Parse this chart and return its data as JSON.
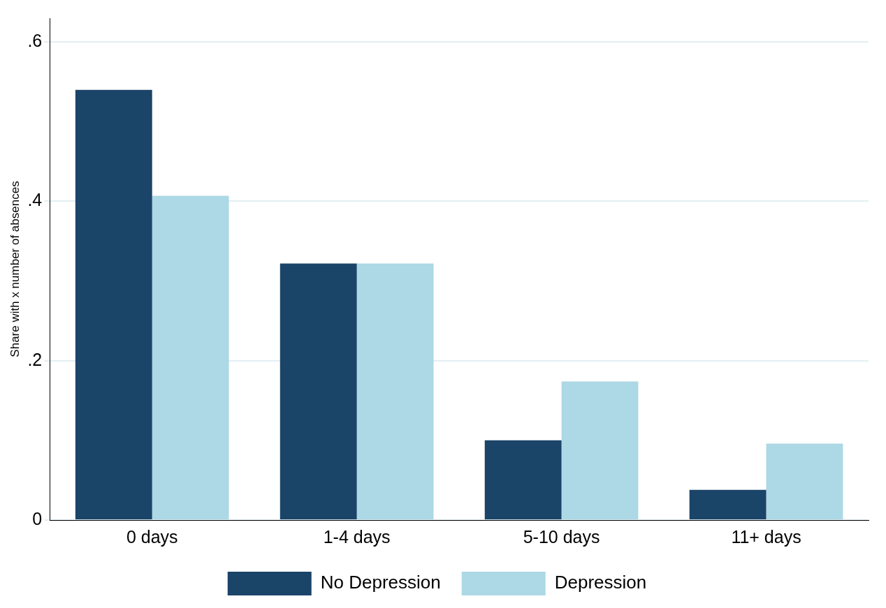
{
  "chart_data": {
    "type": "bar",
    "ylabel": "Share with x number of absences",
    "categories": [
      "0 days",
      "1-4 days",
      "5-10 days",
      "11+ days"
    ],
    "series": [
      {
        "name": "No Depression",
        "color": "#1b4469",
        "values": [
          0.54,
          0.322,
          0.1,
          0.038
        ]
      },
      {
        "name": "Depression",
        "color": "#add8e6",
        "values": [
          0.407,
          0.322,
          0.174,
          0.096
        ]
      }
    ],
    "ylim": [
      0,
      0.63
    ],
    "yticks": [
      {
        "value": 0,
        "label": "0"
      },
      {
        "value": 0.2,
        "label": ".2"
      },
      {
        "value": 0.4,
        "label": ".4"
      },
      {
        "value": 0.6,
        "label": ".6"
      }
    ],
    "grid": "y",
    "legend": "bottom"
  }
}
